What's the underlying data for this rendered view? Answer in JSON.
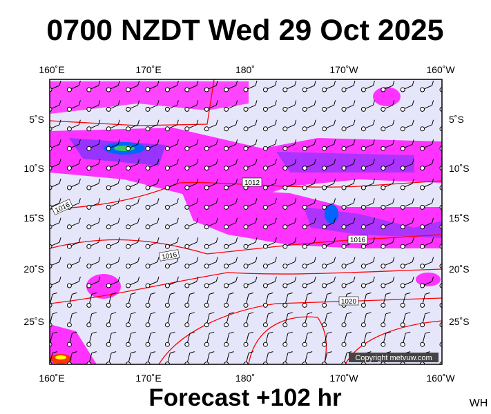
{
  "header": {
    "title": "0700 NZDT Wed 29 Oct 2025"
  },
  "axes": {
    "lon_labels": [
      "160˚E",
      "170˚E",
      "180˚",
      "170˚W",
      "160˚W"
    ],
    "lat_labels": [
      "5˚S",
      "10˚S",
      "15˚S",
      "20˚S",
      "25˚S"
    ]
  },
  "isobar_labels": [
    "1012",
    "1016",
    "1016",
    "1016",
    "1020"
  ],
  "copyright": "Copyright metvuw.com",
  "footer": {
    "forecast": "Forecast +102 hr",
    "credit": "WH"
  }
}
